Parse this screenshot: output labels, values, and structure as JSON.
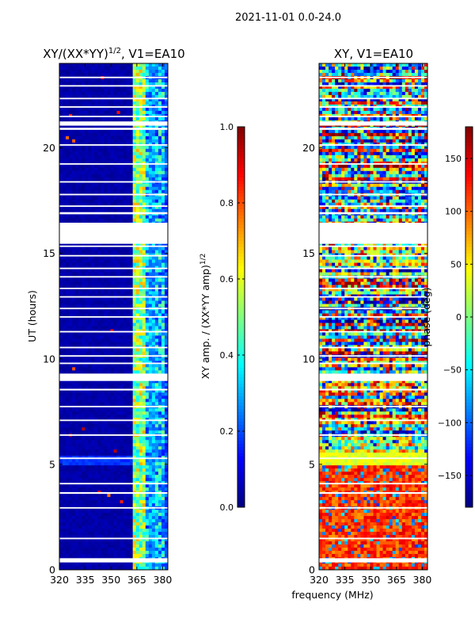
{
  "figure": {
    "suptitle": "2021-11-01 0.0-24.0"
  },
  "chart_data": [
    {
      "type": "heatmap",
      "title": "XY/(XX*YY)^{1/2}, V1=EA10",
      "title_base": "XY/(XX*YY)",
      "title_sup": "1/2",
      "title_suffix": ", V1=EA10",
      "xlabel": "",
      "ylabel": "UT (hours)",
      "xlim": [
        320,
        383
      ],
      "ylim": [
        0,
        24
      ],
      "xticks": [
        320,
        335,
        350,
        365,
        380
      ],
      "yticks": [
        0,
        5,
        10,
        15,
        20
      ],
      "colormap": "jet",
      "value_range": [
        0.0,
        1.0
      ],
      "colorbar": {
        "label": "XY amp. / (XX*YY amp)^{1/2}",
        "label_base": "XY amp. / (XX*YY amp)",
        "label_sup": "1/2",
        "ticks": [
          "0.0",
          "0.2",
          "0.4",
          "0.6",
          "0.8",
          "1.0"
        ],
        "tick_values": [
          0.0,
          0.2,
          0.4,
          0.6,
          0.8,
          1.0
        ]
      },
      "description_values": {
        "background_value": 0.02,
        "band_365_383_value": 0.4,
        "band_363_370_peak": 0.62,
        "hour_5_band_value": 0.15
      },
      "gaps_hours": [
        [
          0.35,
          0.55
        ],
        [
          1.45,
          1.52
        ],
        [
          2.9,
          2.97
        ],
        [
          3.6,
          3.68
        ],
        [
          4.05,
          4.12
        ],
        [
          5.25,
          5.32
        ],
        [
          6.35,
          6.42
        ],
        [
          7.05,
          7.12
        ],
        [
          7.7,
          7.77
        ],
        [
          8.5,
          8.58
        ],
        [
          8.95,
          9.3
        ],
        [
          9.75,
          9.82
        ],
        [
          10.1,
          10.17
        ],
        [
          10.5,
          10.57
        ],
        [
          11.25,
          11.32
        ],
        [
          11.95,
          12.02
        ],
        [
          12.35,
          12.42
        ],
        [
          12.9,
          12.97
        ],
        [
          13.3,
          13.37
        ],
        [
          13.85,
          13.92
        ],
        [
          14.25,
          14.32
        ],
        [
          14.85,
          14.92
        ],
        [
          15.3,
          15.37
        ],
        [
          15.45,
          16.45
        ],
        [
          16.85,
          16.95
        ],
        [
          17.2,
          17.27
        ],
        [
          17.75,
          17.82
        ],
        [
          18.35,
          18.42
        ],
        [
          19.2,
          19.27
        ],
        [
          20.1,
          20.17
        ],
        [
          20.85,
          20.95
        ],
        [
          21.05,
          21.25
        ],
        [
          21.45,
          21.52
        ],
        [
          21.9,
          21.97
        ],
        [
          22.3,
          22.37
        ],
        [
          22.9,
          22.97
        ],
        [
          23.3,
          23.37
        ]
      ]
    },
    {
      "type": "heatmap",
      "title": "XY, V1=EA10",
      "xlabel": "frequency (MHz)",
      "ylabel": "",
      "xlim": [
        320,
        383
      ],
      "ylim": [
        0,
        24
      ],
      "xticks": [
        320,
        335,
        350,
        365,
        380
      ],
      "yticks": [
        0,
        5,
        10,
        15,
        20
      ],
      "colormap": "jet",
      "value_range": [
        -180,
        180
      ],
      "colorbar": {
        "label": "phase (deg)",
        "ticks": [
          "150",
          "100",
          "50",
          "0",
          "−50",
          "−100",
          "−150"
        ],
        "tick_values": [
          150,
          100,
          50,
          0,
          -50,
          -100,
          -150
        ]
      },
      "description_values": {
        "hours_0_5_phase": 115,
        "hours_5_24_phase_spread": 180
      },
      "gaps_hours": [
        [
          0.35,
          0.55
        ],
        [
          1.45,
          1.52
        ],
        [
          2.9,
          2.97
        ],
        [
          3.6,
          3.68
        ],
        [
          4.05,
          4.12
        ],
        [
          5.25,
          5.32
        ],
        [
          6.35,
          6.42
        ],
        [
          7.05,
          7.12
        ],
        [
          7.7,
          7.77
        ],
        [
          8.5,
          8.58
        ],
        [
          8.95,
          9.3
        ],
        [
          9.75,
          9.82
        ],
        [
          10.1,
          10.17
        ],
        [
          10.5,
          10.57
        ],
        [
          11.25,
          11.32
        ],
        [
          11.95,
          12.02
        ],
        [
          12.35,
          12.42
        ],
        [
          12.9,
          12.97
        ],
        [
          13.3,
          13.37
        ],
        [
          13.85,
          13.92
        ],
        [
          14.25,
          14.32
        ],
        [
          14.85,
          14.92
        ],
        [
          15.3,
          15.37
        ],
        [
          15.45,
          16.45
        ],
        [
          16.85,
          16.95
        ],
        [
          17.2,
          17.27
        ],
        [
          17.75,
          17.82
        ],
        [
          18.35,
          18.42
        ],
        [
          19.2,
          19.27
        ],
        [
          20.1,
          20.17
        ],
        [
          20.85,
          20.95
        ],
        [
          21.05,
          21.25
        ],
        [
          21.45,
          21.52
        ],
        [
          21.9,
          21.97
        ],
        [
          22.3,
          22.37
        ],
        [
          22.9,
          22.97
        ],
        [
          23.3,
          23.37
        ]
      ]
    }
  ]
}
